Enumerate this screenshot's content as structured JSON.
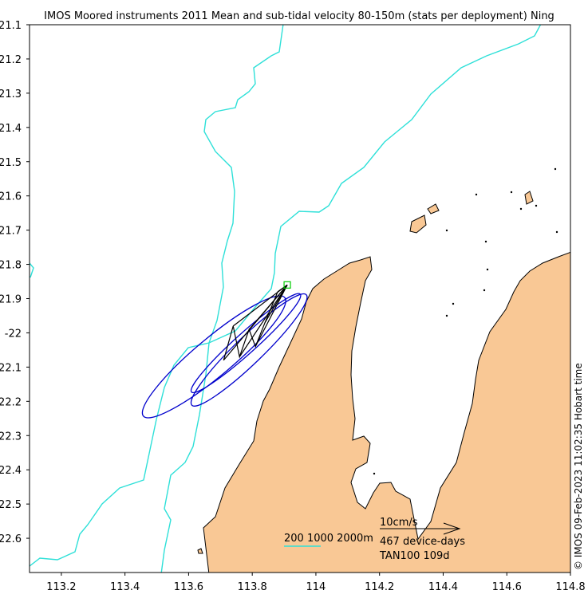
{
  "title": "IMOS Moored instruments 2011 Mean and sub-tidal velocity 80-150m (stats per deployment) Ning",
  "side_label": "© IMOS 09-Feb-2023 11:02:35 Hobart time",
  "legend": {
    "contours_text": "200 1000 2000m",
    "scale_text": "10cm/s",
    "device_days_text": "467 device-days",
    "mooring_text": "TAN100 109d"
  },
  "colors": {
    "land": "#f9c895",
    "isobath": "#2ee0d8",
    "ellipse": "#0000cc",
    "vector": "#000000",
    "mooring": "#00cc00"
  },
  "chart_data": {
    "type": "map",
    "x_range": [
      113.1,
      114.8
    ],
    "y_range": [
      -22.7,
      -21.1
    ],
    "x_ticks": [
      113.2,
      113.4,
      113.6,
      113.8,
      114,
      114.2,
      114.4,
      114.6,
      114.8
    ],
    "x_tick_labels": [
      "113.2",
      "113.4",
      "113.6",
      "113.8",
      "114",
      "114.2",
      "114.4",
      "114.6",
      "114.8"
    ],
    "y_ticks": [
      -21.1,
      -21.2,
      -21.3,
      -21.4,
      -21.5,
      -21.6,
      -21.7,
      -21.8,
      -21.9,
      -22,
      -22.1,
      -22.2,
      -22.3,
      -22.4,
      -22.5,
      -22.6
    ],
    "y_tick_labels": [
      "-21.1",
      "-21.2",
      "-21.3",
      "-21.4",
      "-21.5",
      "-21.6",
      "-21.7",
      "-21.8",
      "-21.9",
      "-22",
      "-22.1",
      "-22.2",
      "-22.3",
      "-22.4",
      "-22.5",
      "-22.6"
    ],
    "mooring": {
      "name": "TAN100",
      "lon": 113.91,
      "lat": -21.86
    },
    "mean_vector_cm_s": {
      "east": -5.1,
      "north": -5.4
    },
    "subtidal_tips": [
      {
        "lon": 113.71,
        "lat": -22.08
      },
      {
        "lon": 113.74,
        "lat": -21.98
      },
      {
        "lon": 113.76,
        "lat": -22.07
      },
      {
        "lon": 113.79,
        "lat": -21.99
      },
      {
        "lon": 113.81,
        "lat": -22.04
      },
      {
        "lon": 113.84,
        "lat": -21.97
      },
      {
        "lon": 113.88,
        "lat": -21.88
      }
    ],
    "ellipses": [
      {
        "center_lon": 113.68,
        "center_lat": -22.07,
        "semi_major_deg": 0.29,
        "semi_minor_deg": 0.055,
        "angle_deg": 40
      },
      {
        "center_lon": 113.78,
        "center_lat": -22.03,
        "semi_major_deg": 0.23,
        "semi_minor_deg": 0.03,
        "angle_deg": 42
      },
      {
        "center_lon": 113.79,
        "center_lat": -22.05,
        "semi_major_deg": 0.25,
        "semi_minor_deg": 0.04,
        "angle_deg": 44
      }
    ],
    "isobaths_m": [
      200,
      1000,
      2000
    ],
    "scale_speed_cm_s": 10
  }
}
